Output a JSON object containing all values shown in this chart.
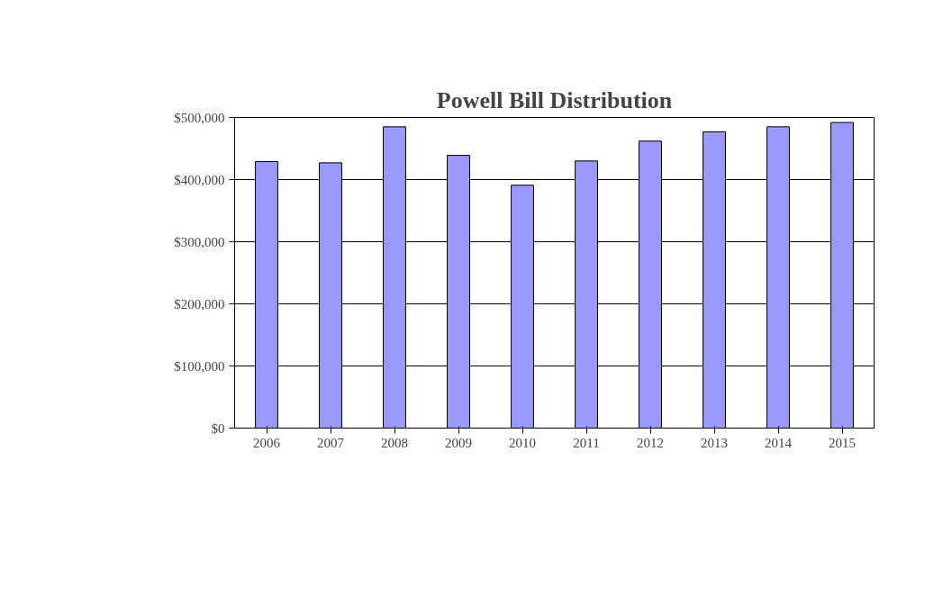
{
  "chart_data": {
    "type": "bar",
    "title": "Powell Bill Distribution",
    "categories": [
      "2006",
      "2007",
      "2008",
      "2009",
      "2010",
      "2011",
      "2012",
      "2013",
      "2014",
      "2015"
    ],
    "series": [
      {
        "color": "#9999ff",
        "values": [
          429000,
          427000,
          485000,
          439000,
          391000,
          430000,
          462000,
          477000,
          485000,
          492000
        ]
      }
    ],
    "ylim": [
      0,
      500000
    ],
    "yticks": [
      {
        "value": 0,
        "label": "$0"
      },
      {
        "value": 100000,
        "label": "$100,000"
      },
      {
        "value": 200000,
        "label": "$200,000"
      },
      {
        "value": 300000,
        "label": "$300,000"
      },
      {
        "value": 400000,
        "label": "$400,000"
      },
      {
        "value": 500000,
        "label": "$500,000"
      }
    ],
    "grid": "y"
  }
}
